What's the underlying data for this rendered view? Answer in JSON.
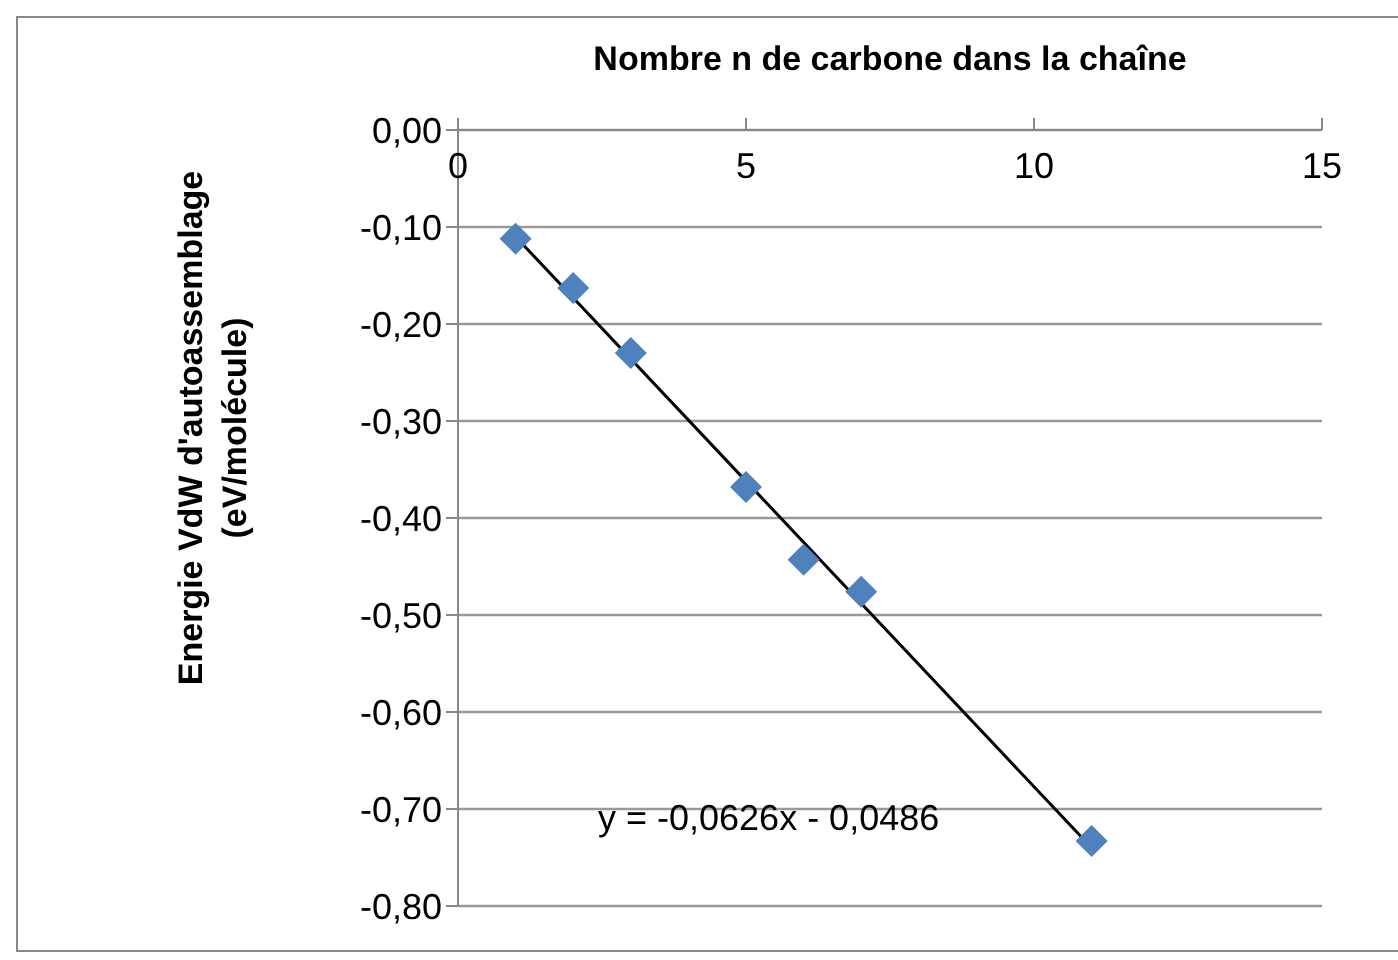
{
  "chart_data": {
    "type": "scatter",
    "xlabel": "Nombre n de carbone dans la chaîne",
    "ylabel": "Energie VdW d'autoassemblage\n(eV/molécule)",
    "x": [
      1,
      2,
      3,
      5,
      6,
      7,
      11
    ],
    "series": [
      {
        "color": "#4f81bd",
        "marker": "diamond",
        "values": [
          -0.112,
          -0.163,
          -0.23,
          -0.368,
          -0.443,
          -0.476,
          -0.733
        ]
      },
      {
        "type": "line",
        "color": "#000000",
        "marker": "none",
        "x": [
          1,
          11
        ],
        "values": [
          -0.11,
          -0.74
        ]
      }
    ],
    "xlim": [
      0,
      15
    ],
    "xticks": [
      0,
      5,
      10,
      15
    ],
    "ylim": [
      -0.8,
      0
    ],
    "yticks": [
      {
        "value": 0,
        "label": "0,00"
      },
      {
        "value": -0.1,
        "label": "-0,10"
      },
      {
        "value": -0.2,
        "label": "-0,20"
      },
      {
        "value": -0.3,
        "label": "-0,30"
      },
      {
        "value": -0.4,
        "label": "-0,40"
      },
      {
        "value": -0.5,
        "label": "-0,50"
      },
      {
        "value": -0.6,
        "label": "-0,60"
      },
      {
        "value": -0.7,
        "label": "-0,70"
      },
      {
        "value": -0.8,
        "label": "-0,80"
      }
    ],
    "grid": "y",
    "annotations": [
      "y = -0,0626x - 0,0486"
    ]
  }
}
